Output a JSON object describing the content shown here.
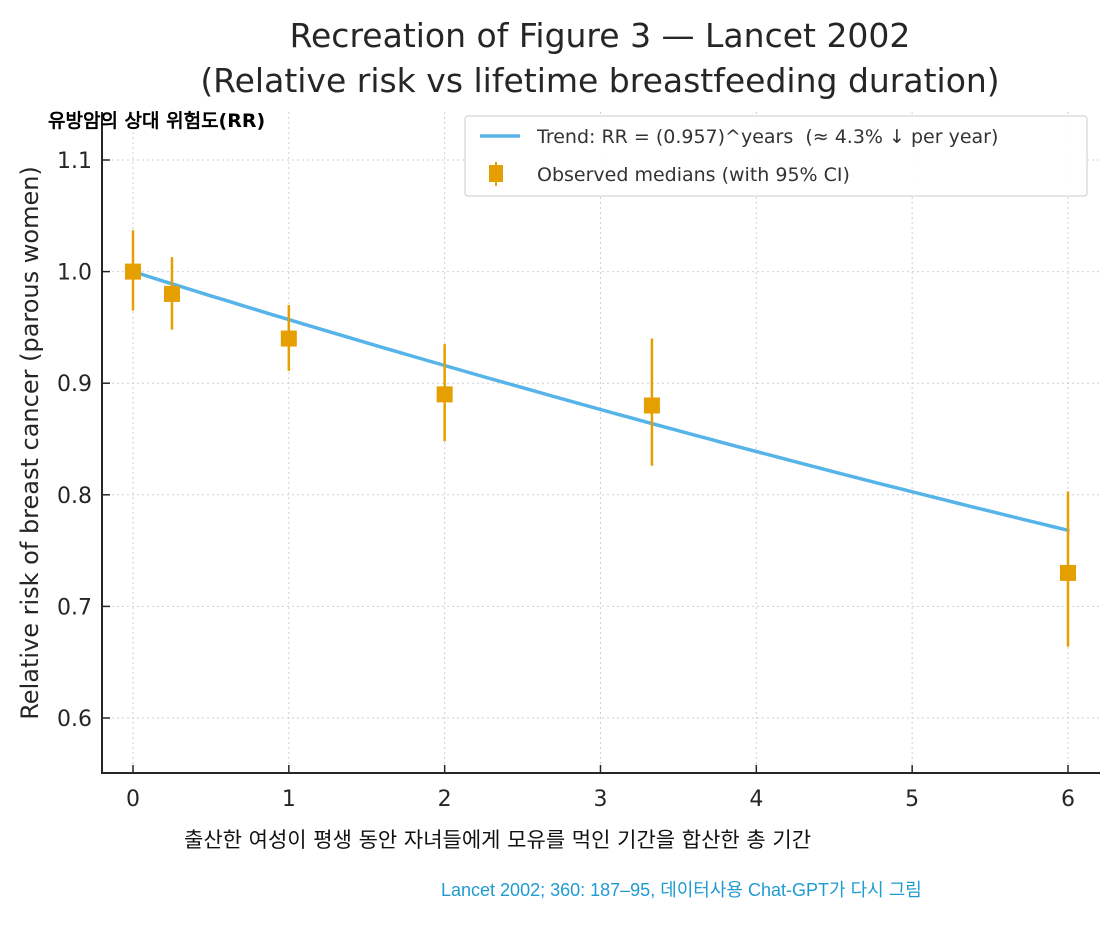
{
  "chart_data": {
    "type": "scatter",
    "title": "Recreation of Figure 3 — Lancet 2002",
    "subtitle": "(Relative risk vs lifetime breastfeeding duration)",
    "xlabel": "",
    "ylabel": "Relative risk of breast cancer (parous women)",
    "xlim": [
      -0.2,
      6.2
    ],
    "ylim": [
      0.55,
      1.13
    ],
    "xticks": [
      0,
      1,
      2,
      3,
      4,
      5,
      6
    ],
    "xtick_labels": [
      "0",
      "1",
      "2",
      "3",
      "4",
      "5",
      "6"
    ],
    "yticks": [
      0.6,
      0.7,
      0.8,
      0.9,
      1.0,
      1.1
    ],
    "ytick_labels": [
      "0.6",
      "0.7",
      "0.8",
      "0.9",
      "1.0",
      "1.1"
    ],
    "grid": true,
    "legend_position": "top-right",
    "series": [
      {
        "name": "Trend: RR = (0.957)^years  (≈ 4.3% ↓ per year)",
        "kind": "line",
        "color": "#56b4e9",
        "formula_base": 0.957,
        "x_range": [
          0,
          6
        ]
      },
      {
        "name": "Observed medians (with 95% CI)",
        "kind": "errorbar",
        "color": "#e69f00",
        "points": [
          {
            "x": 0,
            "y": 1.0,
            "ci_low": 0.965,
            "ci_high": 1.037
          },
          {
            "x": 0.25,
            "y": 0.98,
            "ci_low": 0.948,
            "ci_high": 1.013
          },
          {
            "x": 1,
            "y": 0.94,
            "ci_low": 0.911,
            "ci_high": 0.97
          },
          {
            "x": 2,
            "y": 0.89,
            "ci_low": 0.848,
            "ci_high": 0.935
          },
          {
            "x": 3.33,
            "y": 0.88,
            "ci_low": 0.826,
            "ci_high": 0.94
          },
          {
            "x": 6,
            "y": 0.73,
            "ci_low": 0.664,
            "ci_high": 0.803
          }
        ]
      }
    ]
  },
  "annotations": {
    "ko_ylabel": "유방암의 상대 위험도(RR)",
    "ko_xlabel": "출산한 여성이 평생 동안 자녀들에게 모유를 먹인 기간을 합산한 총 기간",
    "source_note": "Lancet 2002; 360: 187–95, 데이터사용 Chat-GPT가 다시 그림"
  }
}
